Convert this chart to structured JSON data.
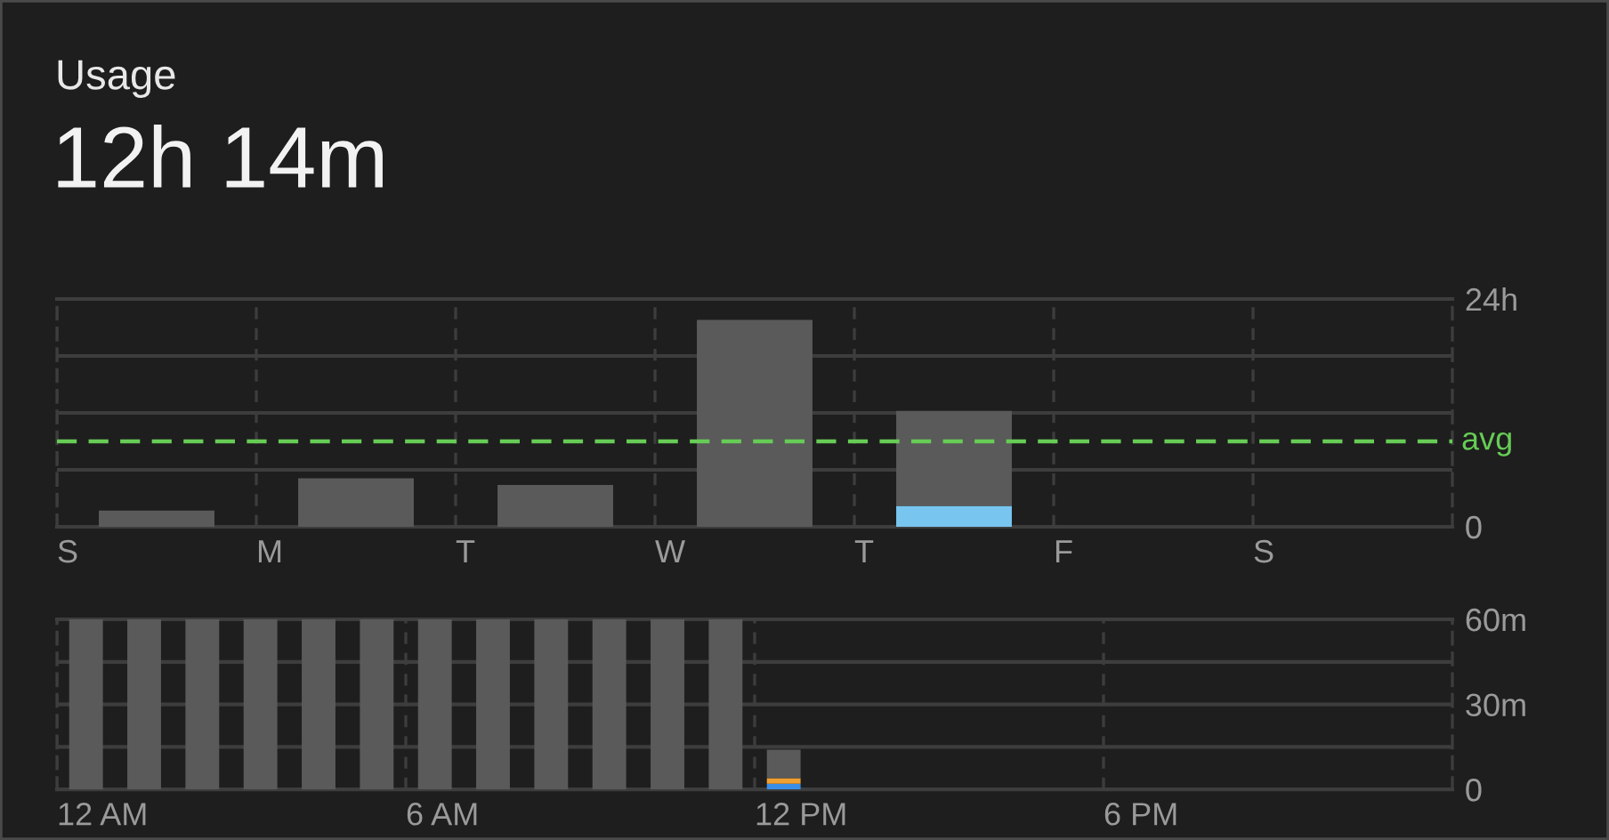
{
  "chart_data": [
    {
      "type": "bar",
      "title": "Usage",
      "subtitle": "12h 14m",
      "categories": [
        "S",
        "M",
        "T",
        "W",
        "T",
        "F",
        "S"
      ],
      "stacked": true,
      "series": [
        {
          "color": "#78c6f0",
          "values": [
            null,
            null,
            null,
            null,
            2.2,
            null,
            null
          ]
        },
        {
          "color": "#5a5a5a",
          "values": [
            1.7,
            5.1,
            4.4,
            21.8,
            10.0,
            null,
            null
          ]
        }
      ],
      "ylim": [
        0,
        24
      ],
      "yticks": [
        0,
        {
          "value": 6,
          "label": null
        },
        {
          "value": 12,
          "label": null
        },
        {
          "value": 18,
          "label": null
        },
        {
          "value": 24,
          "label": "24h"
        }
      ],
      "ref_lines": [
        {
          "axis": "y",
          "value": 9,
          "label": "avg",
          "color": "#66cc55",
          "line_style": "dashed"
        }
      ],
      "grid": true
    },
    {
      "type": "bar",
      "categories": [
        "12 AM",
        null,
        null,
        null,
        null,
        null,
        "6 AM",
        null,
        null,
        null,
        null,
        null,
        "12 PM",
        null,
        null,
        null,
        null,
        null,
        "6 PM",
        null,
        null,
        null,
        null,
        null
      ],
      "stacked": true,
      "series": [
        {
          "color": "#3a8ee8",
          "values": [
            null,
            null,
            null,
            null,
            null,
            null,
            null,
            null,
            null,
            null,
            null,
            null,
            2,
            null,
            null,
            null,
            null,
            null,
            null,
            null,
            null,
            null,
            null,
            null
          ]
        },
        {
          "color": "#f0a030",
          "values": [
            null,
            null,
            null,
            null,
            null,
            null,
            null,
            null,
            null,
            null,
            null,
            null,
            2,
            null,
            null,
            null,
            null,
            null,
            null,
            null,
            null,
            null,
            null,
            null
          ]
        },
        {
          "color": "#5a5a5a",
          "values": [
            60,
            60,
            60,
            60,
            60,
            60,
            60,
            60,
            60,
            60,
            60,
            60,
            10,
            null,
            null,
            null,
            null,
            null,
            null,
            null,
            null,
            null,
            null,
            null
          ]
        }
      ],
      "ylim": [
        0,
        60
      ],
      "yticks": [
        0,
        {
          "value": 15,
          "label": null
        },
        {
          "value": 30,
          "label": "30m"
        },
        {
          "value": 45,
          "label": null
        },
        {
          "value": 60,
          "label": "60m"
        }
      ],
      "grid": true
    }
  ]
}
